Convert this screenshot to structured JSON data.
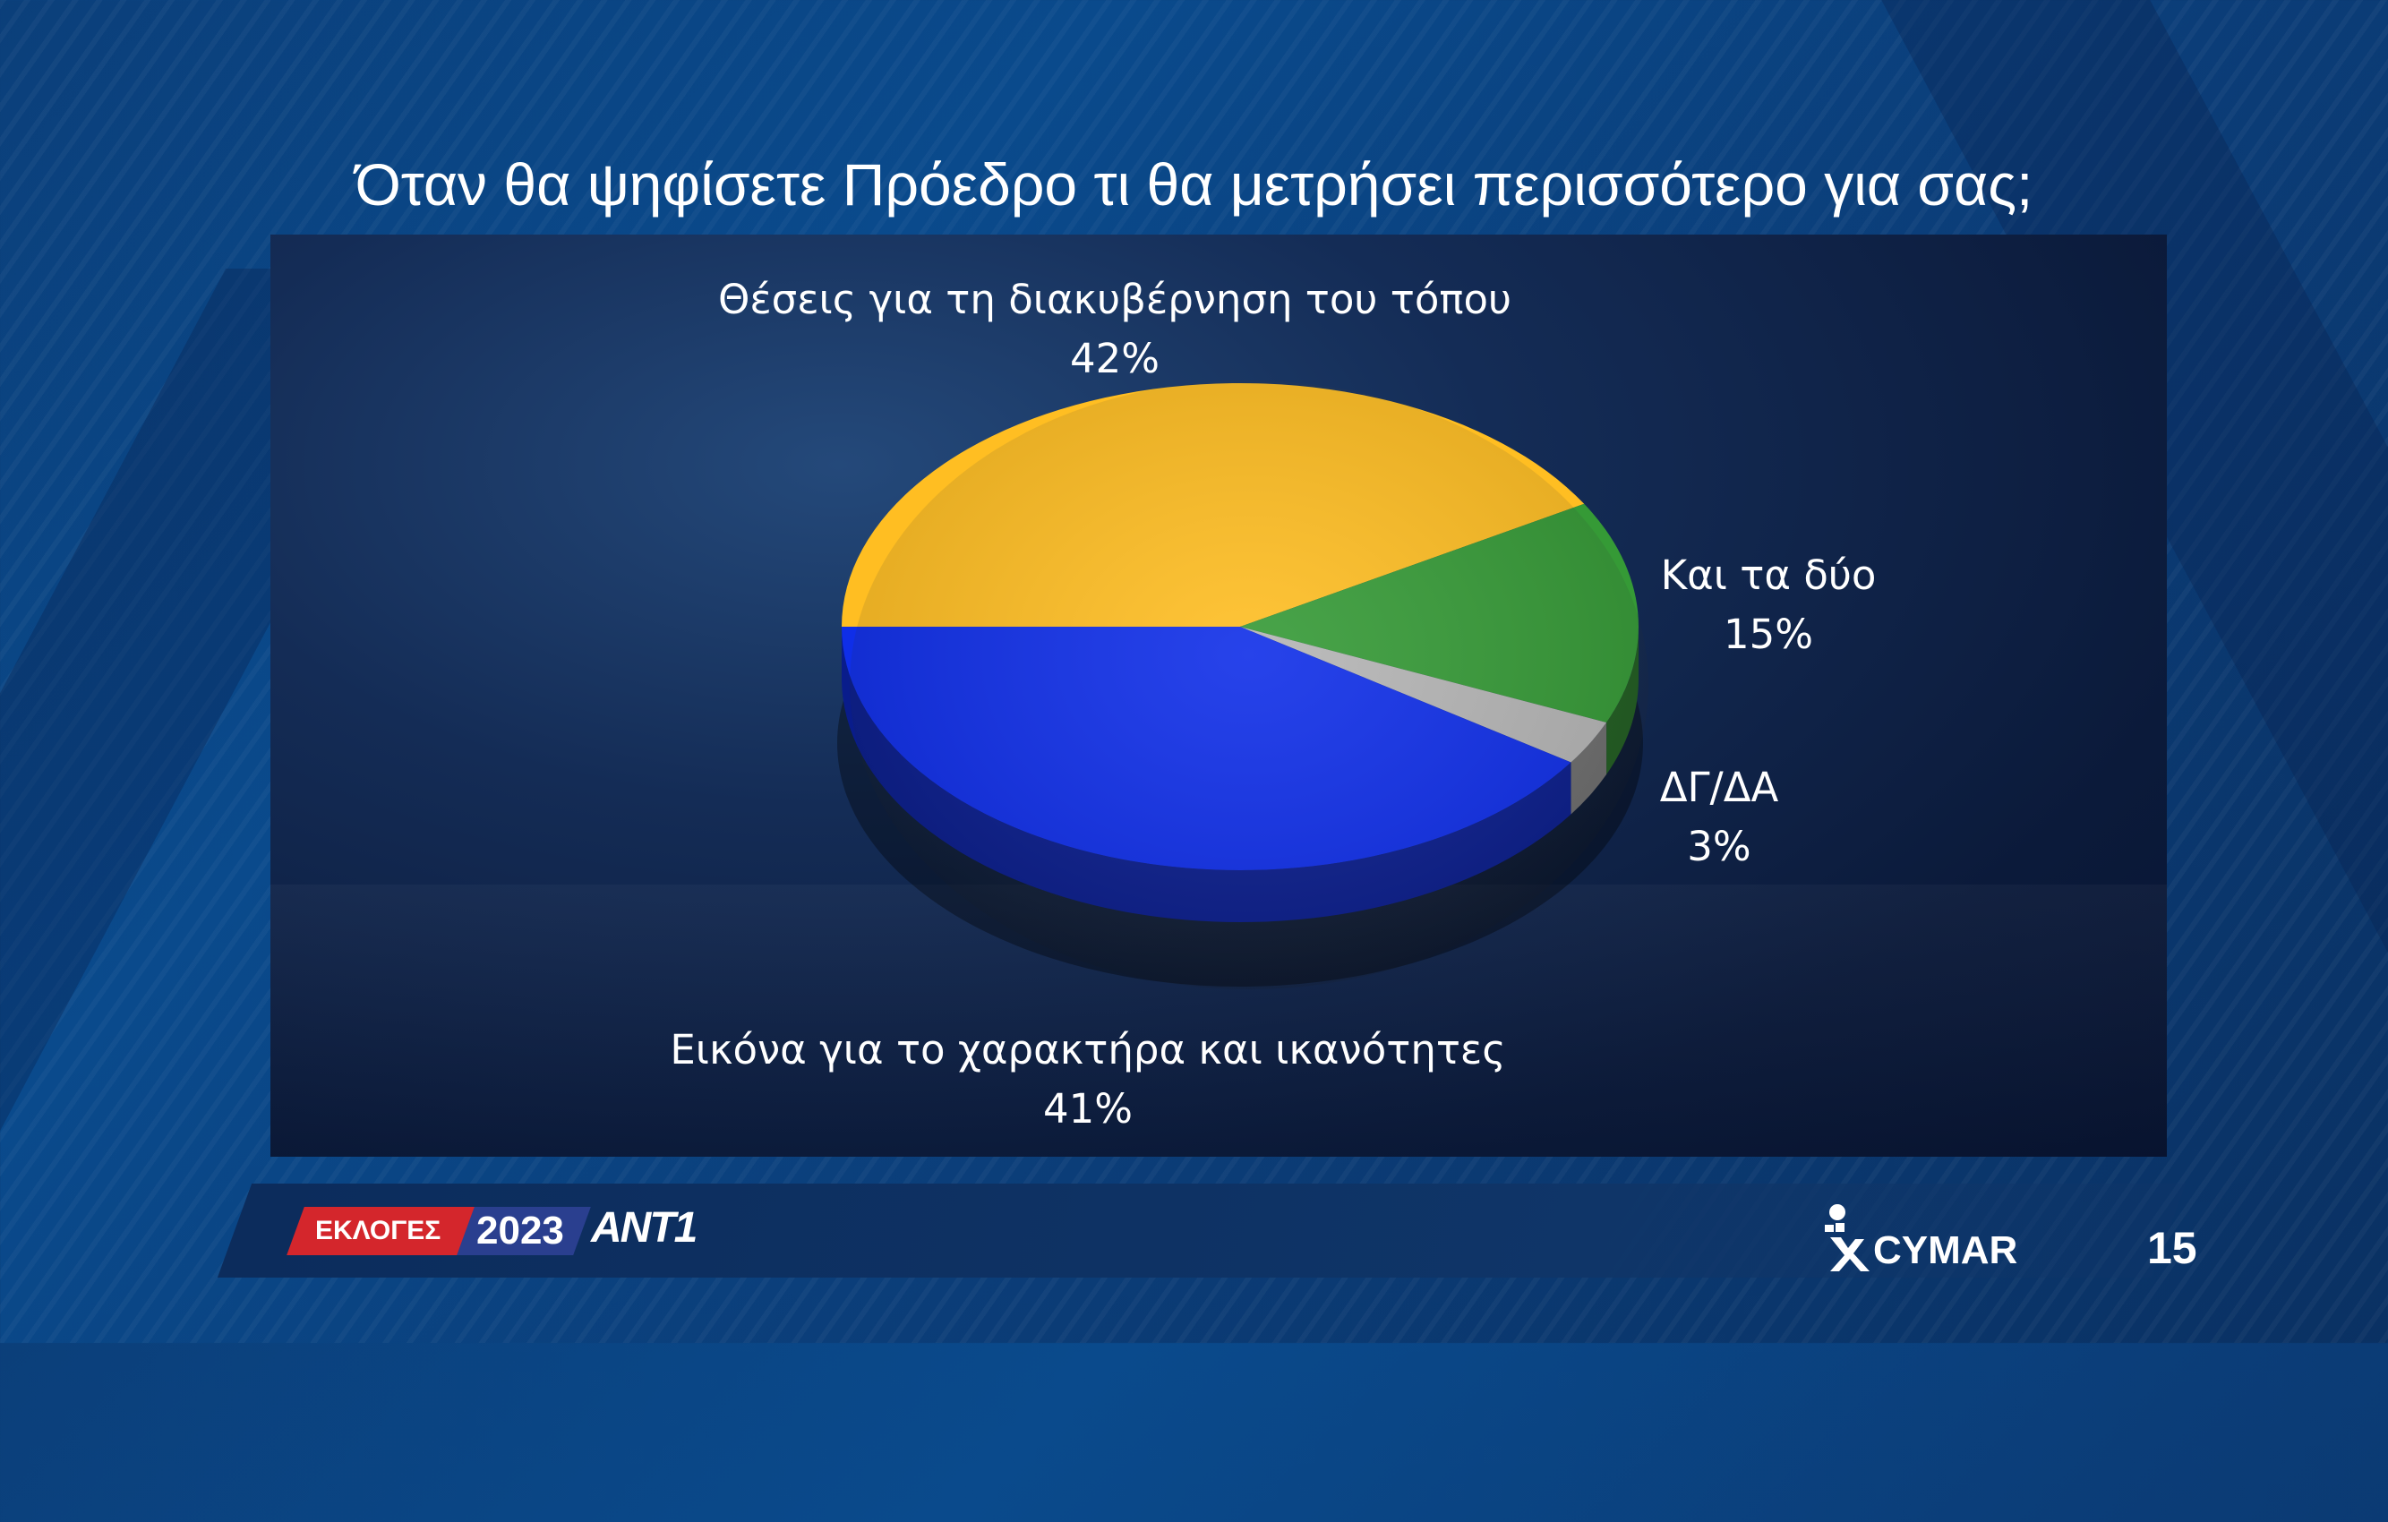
{
  "chart_data": {
    "type": "pie",
    "title": "Όταν θα ψηφίσετε Πρόεδρο τι θα μετρήσει περισσότερο για σας;",
    "slices": [
      {
        "label": "Θέσεις για τη διακυβέρνηση του τόπου",
        "value": 42,
        "value_label": "42%",
        "color": "#ffbe22"
      },
      {
        "label": "Και τα δύο",
        "value": 15,
        "value_label": "15%",
        "color": "#359a36"
      },
      {
        "label": "ΔΓ/ΔΑ",
        "value": 3,
        "value_label": "3%",
        "color": "#b5b5b5"
      },
      {
        "label": "Εικόνα για το χαρακτήρα και ικανότητες",
        "value": 41,
        "value_label": "41%",
        "color": "#0f2ee8"
      }
    ]
  },
  "footer": {
    "badge": "ΕΚΛΟΓΕΣ",
    "year": "2023",
    "network": "ANT1",
    "pollster": "CYMAR",
    "page_number": "15"
  }
}
